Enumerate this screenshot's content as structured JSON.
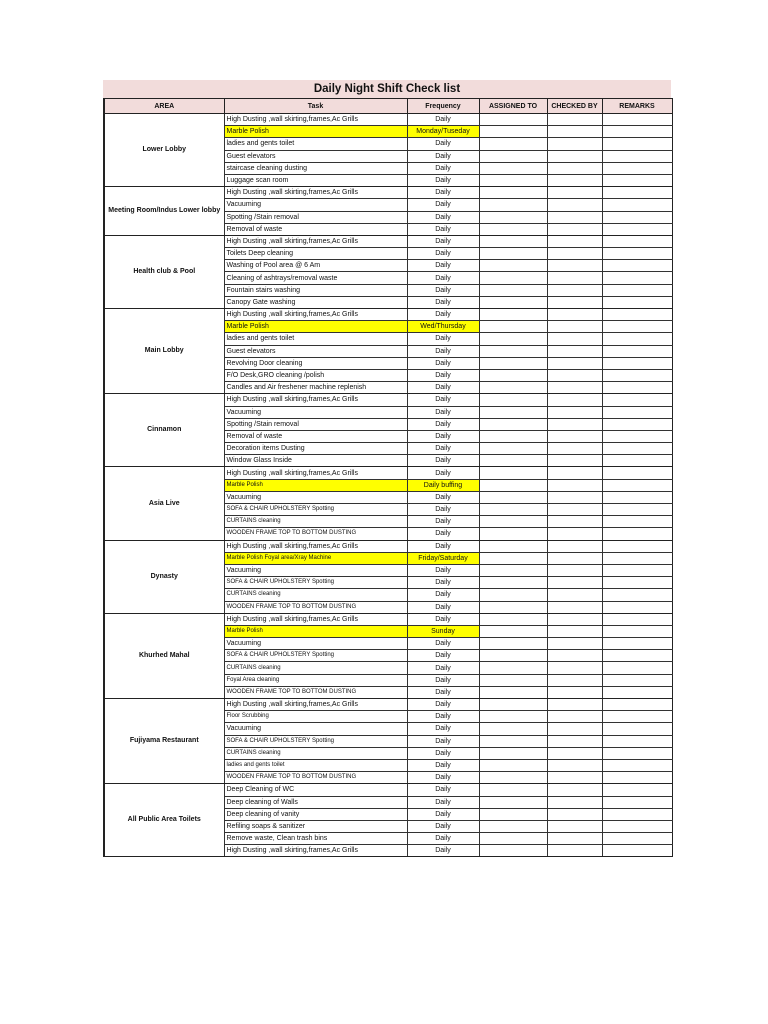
{
  "title": "Daily Night Shift Check list",
  "headers": [
    "AREA",
    "Task",
    "Frequency",
    "ASSIGNED TO",
    "CHECKED BY",
    "REMARKS"
  ],
  "highlight_color": "#ffff00",
  "header_color": "#f2dcdb",
  "sections": [
    {
      "area": "Lower Lobby",
      "tasks": [
        {
          "task": "High Dusting ,wall skirting,frames,Ac Grills",
          "frequency": "Daily"
        },
        {
          "task": "Marble Polish",
          "frequency": "Monday/Tuseday",
          "highlight": true
        },
        {
          "task": "ladies and gents toilet",
          "frequency": "Daily"
        },
        {
          "task": "Guest elevators",
          "frequency": "Daily"
        },
        {
          "task": "staircase cleaning dusting",
          "frequency": "Daily"
        },
        {
          "task": "Luggage scan room",
          "frequency": "Daily"
        }
      ]
    },
    {
      "area": "Meeting Room/Indus  Lower lobby",
      "tasks": [
        {
          "task": "High Dusting ,wall skirting,frames,Ac Grills",
          "frequency": "Daily"
        },
        {
          "task": "Vacuuming",
          "frequency": "Daily"
        },
        {
          "task": "Spotting /Stain removal",
          "frequency": "Daily"
        },
        {
          "task": "Removal of waste",
          "frequency": "Daily"
        }
      ]
    },
    {
      "area": "Health club & Pool",
      "tasks": [
        {
          "task": "High Dusting ,wall skirting,frames,Ac Grills",
          "frequency": "Daily"
        },
        {
          "task": "Toilets Deep cleaning",
          "frequency": "Daily"
        },
        {
          "task": "Washing of Pool area @ 6 Am",
          "frequency": "Daily"
        },
        {
          "task": "Cleaning of ashtrays/removal waste",
          "frequency": "Daily"
        },
        {
          "task": "Fountain stairs washing",
          "frequency": "Daily"
        },
        {
          "task": "Canopy Gate washing",
          "frequency": "Daily"
        }
      ]
    },
    {
      "area": "Main Lobby",
      "tasks": [
        {
          "task": "High Dusting ,wall skirting,frames,Ac Grills",
          "frequency": "Daily"
        },
        {
          "task": "Marble Polish",
          "frequency": "Wed/Thursday",
          "highlight": true
        },
        {
          "task": "ladies and gents toilet",
          "frequency": "Daily"
        },
        {
          "task": "Guest elevators",
          "frequency": "Daily"
        },
        {
          "task": "Revolving Door cleaning",
          "frequency": "Daily"
        },
        {
          "task": "F/O Desk,GRO cleaning /polish",
          "frequency": "Daily"
        },
        {
          "task": "Candles and Air freshener machine replenish",
          "frequency": "Daily"
        }
      ]
    },
    {
      "area": "Cinnamon",
      "tasks": [
        {
          "task": "High Dusting ,wall skirting,frames,Ac Grills",
          "frequency": "Daily"
        },
        {
          "task": "Vacuuming",
          "frequency": "Daily"
        },
        {
          "task": "Spotting /Stain removal",
          "frequency": "Daily"
        },
        {
          "task": "Removal of waste",
          "frequency": "Daily"
        },
        {
          "task": "Decoration items Dusting",
          "frequency": "Daily"
        },
        {
          "task": "Window Glass Inside",
          "frequency": "Daily"
        }
      ]
    },
    {
      "area": "Asia Live",
      "tasks": [
        {
          "task": "High Dusting ,wall skirting,frames,Ac Grills",
          "frequency": "Daily"
        },
        {
          "task": "Marble Polish",
          "frequency": "Daily buffing",
          "highlight": true,
          "small": true
        },
        {
          "task": "Vacuuming",
          "frequency": "Daily"
        },
        {
          "task": "SOFA & CHAIR UPHOLSTERY Spotting",
          "frequency": "Daily",
          "small": true
        },
        {
          "task": "CURTAINS cleaning",
          "frequency": "Daily",
          "small": true
        },
        {
          "task": "WOODEN FRAME TOP TO BOTTOM DUSTING",
          "frequency": "Daily",
          "small": true
        }
      ]
    },
    {
      "area": "Dynasty",
      "tasks": [
        {
          "task": "High Dusting ,wall skirting,frames,Ac Grills",
          "frequency": "Daily"
        },
        {
          "task": "Marble Polish Foyal area/Xray Machine",
          "frequency": "Friday/Saturday",
          "highlight": true,
          "small": true
        },
        {
          "task": "Vacuuming",
          "frequency": "Daily"
        },
        {
          "task": "SOFA & CHAIR UPHOLSTERY Spotting",
          "frequency": "Daily",
          "small": true
        },
        {
          "task": "CURTAINS cleaning",
          "frequency": "Daily",
          "small": true
        },
        {
          "task": "WOODEN FRAME TOP TO BOTTOM DUSTING",
          "frequency": "Daily",
          "small": true
        }
      ]
    },
    {
      "area": "Khurhed Mahal",
      "tasks": [
        {
          "task": "High Dusting ,wall skirting,frames,Ac Grills",
          "frequency": "Daily"
        },
        {
          "task": "Marble Polish",
          "frequency": "Sunday",
          "highlight": true,
          "small": true
        },
        {
          "task": "Vacuuming",
          "frequency": "Daily"
        },
        {
          "task": "SOFA & CHAIR UPHOLSTERY Spotting",
          "frequency": "Daily",
          "small": true
        },
        {
          "task": "CURTAINS cleaning",
          "frequency": "Daily",
          "small": true
        },
        {
          "task": "Foyal Area cleaning",
          "frequency": "Daily",
          "small": true
        },
        {
          "task": "WOODEN FRAME TOP TO BOTTOM DUSTING",
          "frequency": "Daily",
          "small": true
        }
      ]
    },
    {
      "area": "Fujiyama Restaurant",
      "tasks": [
        {
          "task": "High Dusting ,wall skirting,frames,Ac Grills",
          "frequency": "Daily"
        },
        {
          "task": "Floor Scrubbing",
          "frequency": "Daily",
          "small": true
        },
        {
          "task": "Vacuuming",
          "frequency": "Daily"
        },
        {
          "task": "SOFA & CHAIR UPHOLSTERY Spotting",
          "frequency": "Daily",
          "small": true
        },
        {
          "task": "CURTAINS cleaning",
          "frequency": "Daily",
          "small": true
        },
        {
          "task": "ladies and gents toilet",
          "frequency": "Daily",
          "small": true
        },
        {
          "task": "WOODEN FRAME TOP TO BOTTOM DUSTING",
          "frequency": "Daily",
          "small": true
        }
      ]
    },
    {
      "area": "All Public Area Toilets",
      "tasks": [
        {
          "task": "Deep Cleaning of WC",
          "frequency": "Daily"
        },
        {
          "task": "Deep cleaning of Walls",
          "frequency": "Daily"
        },
        {
          "task": "Deep cleaning of vanity",
          "frequency": "Daily"
        },
        {
          "task": "Refiling soaps & sanitizer",
          "frequency": "Daily"
        },
        {
          "task": "Remove waste, Clean trash bins",
          "frequency": "Daily"
        },
        {
          "task": "High Dusting ,wall skirting,frames,Ac Grills",
          "frequency": "Daily"
        }
      ]
    }
  ]
}
